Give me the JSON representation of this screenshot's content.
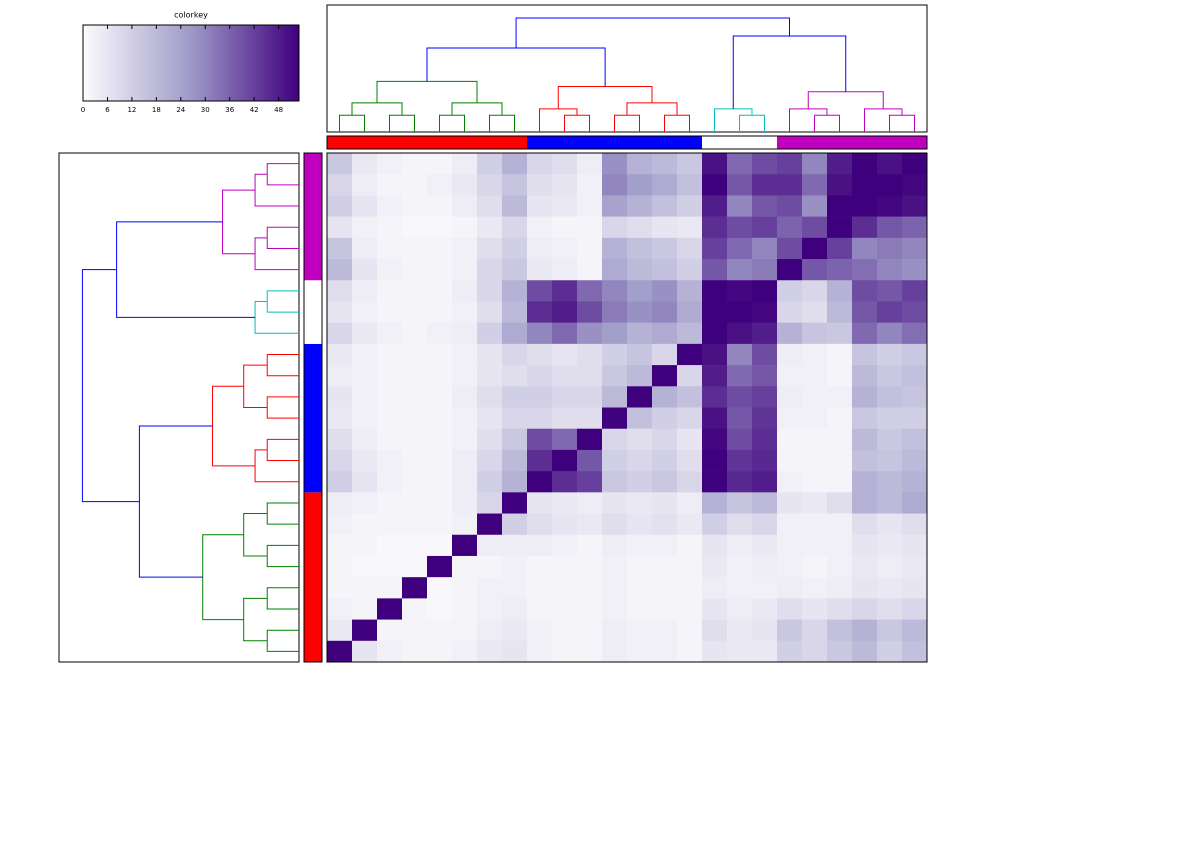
{
  "chart_data": {
    "type": "heatmap",
    "colorkey_title": "colorkey",
    "zlim": [
      0,
      53
    ],
    "zticks": [
      0,
      6,
      12,
      18,
      24,
      30,
      36,
      42,
      48
    ],
    "colors": [
      "#fcfbfd",
      "#9e9ac8",
      "#3f007d"
    ],
    "clusters": [
      {
        "color": "#ff0000",
        "dendrogram_color": "#008000",
        "size": 8
      },
      {
        "color": "#0000ff",
        "dendrogram_color": "#ff0000",
        "size": 7
      },
      {
        "color": "#ffffff",
        "dendrogram_color": "#00bfbf",
        "size": 3
      },
      {
        "color": "#bf00bf",
        "dendrogram_color": "#bf00bf",
        "size": 6
      }
    ],
    "link_color": "#0000ff",
    "matrix": [
      [
        14,
        5,
        3,
        2,
        2,
        4,
        12,
        20,
        10,
        8,
        4,
        28,
        20,
        18,
        14,
        50,
        35,
        40,
        42,
        30,
        48,
        54,
        50,
        54
      ],
      [
        10,
        4,
        2,
        2,
        3,
        5,
        10,
        15,
        8,
        6,
        3,
        30,
        25,
        22,
        16,
        54,
        38,
        45,
        45,
        35,
        50,
        54,
        54,
        52
      ],
      [
        12,
        6,
        3,
        2,
        2,
        4,
        8,
        18,
        6,
        5,
        3,
        24,
        20,
        16,
        12,
        48,
        30,
        38,
        40,
        28,
        54,
        54,
        52,
        50
      ],
      [
        6,
        3,
        2,
        1,
        1,
        2,
        5,
        10,
        3,
        2,
        2,
        10,
        8,
        6,
        5,
        45,
        40,
        42,
        36,
        40,
        54,
        45,
        38,
        36
      ],
      [
        15,
        4,
        2,
        2,
        2,
        3,
        8,
        12,
        4,
        3,
        2,
        20,
        16,
        14,
        10,
        42,
        35,
        30,
        40,
        54,
        42,
        30,
        32,
        30
      ],
      [
        18,
        6,
        3,
        2,
        2,
        3,
        10,
        14,
        5,
        4,
        2,
        22,
        18,
        16,
        12,
        38,
        30,
        32,
        54,
        38,
        36,
        34,
        30,
        28
      ],
      [
        8,
        4,
        2,
        2,
        2,
        4,
        10,
        20,
        40,
        45,
        35,
        30,
        25,
        28,
        20,
        54,
        52,
        54,
        12,
        10,
        20,
        40,
        38,
        42
      ],
      [
        6,
        3,
        2,
        2,
        2,
        3,
        8,
        18,
        45,
        48,
        40,
        32,
        28,
        30,
        22,
        54,
        54,
        52,
        10,
        8,
        18,
        38,
        42,
        40
      ],
      [
        10,
        5,
        3,
        2,
        3,
        4,
        12,
        22,
        30,
        35,
        28,
        25,
        20,
        22,
        18,
        54,
        50,
        48,
        20,
        15,
        14,
        35,
        30,
        34
      ],
      [
        5,
        3,
        2,
        2,
        2,
        3,
        6,
        10,
        8,
        6,
        8,
        12,
        15,
        10,
        54,
        50,
        30,
        40,
        4,
        3,
        2,
        15,
        12,
        14
      ],
      [
        4,
        3,
        2,
        2,
        2,
        3,
        6,
        8,
        10,
        8,
        8,
        14,
        18,
        54,
        10,
        48,
        35,
        38,
        3,
        3,
        2,
        18,
        14,
        16
      ],
      [
        6,
        3,
        2,
        2,
        2,
        4,
        8,
        12,
        12,
        10,
        10,
        18,
        54,
        20,
        16,
        45,
        40,
        42,
        4,
        3,
        3,
        20,
        16,
        15
      ],
      [
        5,
        3,
        2,
        2,
        2,
        3,
        6,
        10,
        10,
        8,
        8,
        54,
        16,
        12,
        10,
        50,
        38,
        44,
        3,
        3,
        2,
        14,
        12,
        12
      ],
      [
        8,
        4,
        2,
        2,
        2,
        3,
        8,
        14,
        40,
        35,
        54,
        10,
        8,
        10,
        6,
        52,
        40,
        45,
        2,
        2,
        2,
        18,
        14,
        16
      ],
      [
        10,
        5,
        3,
        2,
        2,
        4,
        10,
        18,
        45,
        54,
        38,
        12,
        10,
        12,
        8,
        54,
        44,
        46,
        2,
        2,
        2,
        16,
        15,
        18
      ],
      [
        12,
        6,
        3,
        2,
        2,
        4,
        12,
        20,
        54,
        45,
        42,
        14,
        12,
        14,
        10,
        54,
        46,
        48,
        3,
        2,
        2,
        20,
        18,
        20
      ],
      [
        4,
        3,
        2,
        2,
        2,
        4,
        10,
        54,
        6,
        5,
        4,
        6,
        5,
        6,
        4,
        20,
        15,
        18,
        6,
        5,
        8,
        20,
        18,
        22
      ],
      [
        3,
        2,
        2,
        2,
        2,
        3,
        54,
        12,
        8,
        6,
        5,
        8,
        6,
        7,
        5,
        12,
        8,
        10,
        3,
        3,
        3,
        8,
        6,
        8
      ],
      [
        2,
        2,
        1,
        1,
        1,
        54,
        4,
        4,
        4,
        3,
        2,
        4,
        3,
        3,
        2,
        6,
        4,
        5,
        3,
        3,
        3,
        6,
        5,
        6
      ],
      [
        2,
        1,
        1,
        1,
        54,
        2,
        2,
        3,
        2,
        2,
        2,
        3,
        2,
        2,
        2,
        5,
        3,
        4,
        3,
        2,
        3,
        5,
        4,
        5
      ],
      [
        2,
        2,
        2,
        54,
        1,
        2,
        3,
        3,
        2,
        2,
        2,
        3,
        2,
        2,
        2,
        4,
        3,
        3,
        4,
        3,
        4,
        6,
        5,
        6
      ],
      [
        3,
        2,
        54,
        2,
        1,
        2,
        3,
        4,
        2,
        2,
        2,
        3,
        2,
        2,
        2,
        6,
        4,
        5,
        8,
        6,
        8,
        10,
        8,
        10
      ],
      [
        5,
        54,
        2,
        2,
        2,
        2,
        4,
        5,
        3,
        2,
        2,
        4,
        3,
        3,
        2,
        8,
        5,
        6,
        14,
        10,
        16,
        20,
        14,
        18
      ],
      [
        54,
        6,
        3,
        2,
        2,
        3,
        5,
        6,
        3,
        2,
        2,
        4,
        3,
        3,
        2,
        6,
        5,
        5,
        12,
        10,
        14,
        18,
        12,
        16
      ]
    ]
  }
}
